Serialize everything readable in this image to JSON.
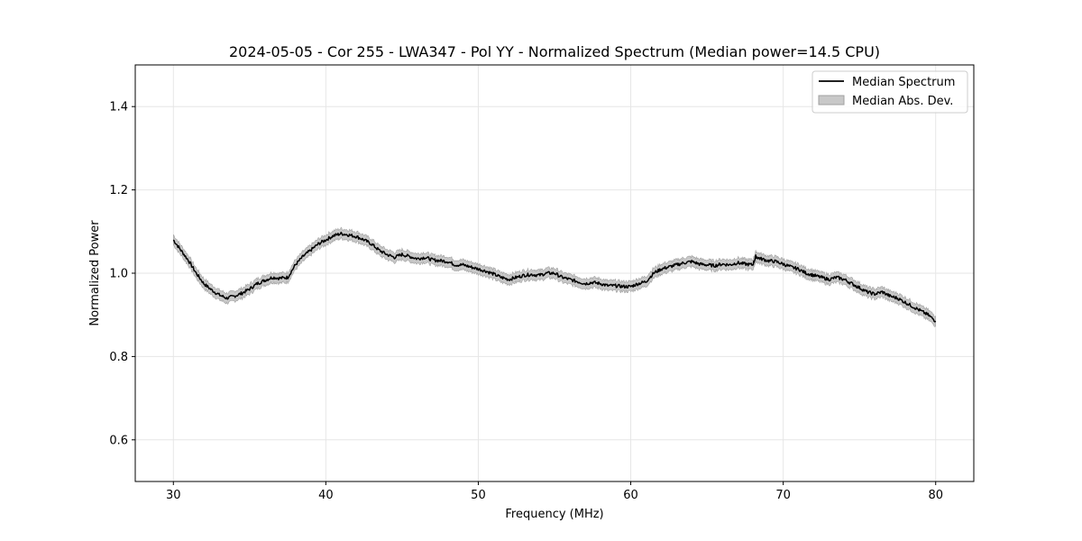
{
  "chart_data": {
    "type": "line",
    "title": "2024-05-05 - Cor 255 - LWA347 - Pol YY - Normalized Spectrum (Median power=14.5 CPU)",
    "xlabel": "Frequency (MHz)",
    "ylabel": "Normalized Power",
    "xlim": [
      27.5,
      82.5
    ],
    "ylim": [
      0.5,
      1.5
    ],
    "x_ticks": [
      30,
      40,
      50,
      60,
      70,
      80
    ],
    "y_ticks": [
      0.6,
      0.8,
      1.0,
      1.2,
      1.4
    ],
    "grid": true,
    "legend_position": "top-right",
    "legend": [
      "Median Spectrum",
      "Median Abs. Dev."
    ],
    "colors": {
      "line": "#000000",
      "band": "#c8c8c8",
      "band_edge": "#a0a0a0",
      "grid": "#e6e6e6"
    },
    "series": [
      {
        "name": "Median Spectrum",
        "x": [
          30,
          30.5,
          31,
          31.5,
          32,
          32.5,
          33,
          33.5,
          34,
          34.5,
          35,
          35.5,
          36,
          36.5,
          37,
          37.5,
          38,
          38.5,
          39,
          39.5,
          40,
          40.5,
          41,
          41.5,
          42,
          42.5,
          43,
          43.5,
          44,
          44.5,
          45,
          45.5,
          46,
          46.5,
          47,
          47.5,
          48,
          48.5,
          49,
          49.5,
          50,
          50.5,
          51,
          51.5,
          52,
          52.5,
          53,
          53.5,
          54,
          54.5,
          55,
          55.5,
          56,
          56.5,
          57,
          57.5,
          58,
          58.5,
          59,
          59.5,
          60,
          60.5,
          61,
          61.5,
          62,
          62.5,
          63,
          63.5,
          64,
          64.5,
          65,
          65.5,
          66,
          66.5,
          67,
          67.5,
          68,
          68.2,
          68.5,
          69,
          69.5,
          70,
          70.5,
          71,
          71.5,
          72,
          72.5,
          73,
          73.5,
          74,
          74.5,
          75,
          75.5,
          76,
          76.5,
          77,
          77.5,
          78,
          78.5,
          79,
          79.5,
          80
        ],
        "y": [
          1.08,
          1.055,
          1.03,
          1.0,
          0.975,
          0.96,
          0.948,
          0.94,
          0.945,
          0.952,
          0.962,
          0.975,
          0.983,
          0.99,
          0.988,
          0.99,
          1.02,
          1.04,
          1.055,
          1.07,
          1.08,
          1.09,
          1.095,
          1.092,
          1.088,
          1.08,
          1.07,
          1.055,
          1.045,
          1.038,
          1.045,
          1.04,
          1.035,
          1.038,
          1.032,
          1.03,
          1.028,
          1.02,
          1.02,
          1.015,
          1.01,
          1.005,
          0.998,
          0.99,
          0.985,
          0.99,
          0.995,
          0.997,
          0.995,
          1.0,
          1.0,
          0.99,
          0.985,
          0.98,
          0.975,
          0.978,
          0.975,
          0.97,
          0.97,
          0.968,
          0.968,
          0.975,
          0.98,
          1.0,
          1.01,
          1.015,
          1.02,
          1.025,
          1.028,
          1.022,
          1.02,
          1.018,
          1.022,
          1.02,
          1.025,
          1.022,
          1.02,
          1.04,
          1.035,
          1.03,
          1.028,
          1.022,
          1.015,
          1.01,
          1.0,
          0.995,
          0.99,
          0.985,
          0.99,
          0.985,
          0.975,
          0.965,
          0.955,
          0.95,
          0.955,
          0.945,
          0.94,
          0.93,
          0.92,
          0.91,
          0.9,
          0.885
        ]
      }
    ],
    "band_halfwidth": 0.012
  }
}
